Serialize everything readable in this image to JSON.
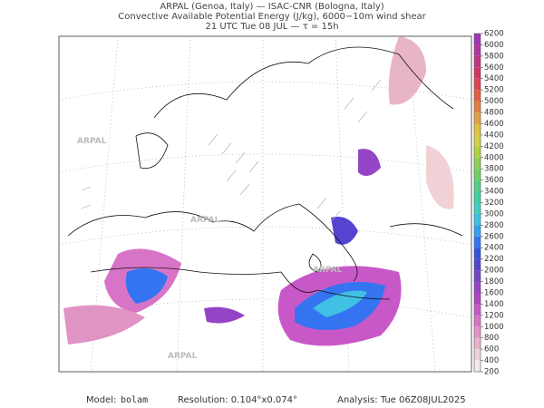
{
  "header": {
    "line1": "ARPAL (Genoa, Italy)  —  ISAC-CNR (Bologna, Italy)",
    "line2": "Convective Available Potential Energy (J/kg), 6000−10m wind shear",
    "line3": "21 UTC Tue 08 JUL  —  τ = 15h"
  },
  "watermark": "ARPAL",
  "colorbar": {
    "levels": [
      200,
      400,
      600,
      800,
      1000,
      1200,
      1400,
      1600,
      1800,
      2000,
      2200,
      2400,
      2600,
      2800,
      3000,
      3200,
      3400,
      3600,
      3800,
      4000,
      4200,
      4400,
      4600,
      4800,
      5000,
      5200,
      5400,
      5600,
      5800,
      6000,
      6200
    ],
    "colors": [
      "#f6e8e8",
      "#f0d2d6",
      "#e8b4c8",
      "#e094c4",
      "#d874c8",
      "#c858c8",
      "#b044c0",
      "#9444c4",
      "#7444c8",
      "#5444d0",
      "#3454e0",
      "#3474f0",
      "#34a0f0",
      "#40c0e4",
      "#40d0c4",
      "#40d0a4",
      "#50d084",
      "#70d064",
      "#90d054",
      "#b0d044",
      "#d0d044",
      "#e0c044",
      "#e0a044",
      "#e08044",
      "#e06044",
      "#e04454",
      "#d03464",
      "#c03484",
      "#b034a0",
      "#a034b4"
    ]
  },
  "footer": {
    "model_label": "Model:",
    "model": "bolam",
    "resolution": "Resolution: 0.104°x0.074°",
    "analysis": "Analysis: Tue 06Z08JUL2025"
  }
}
